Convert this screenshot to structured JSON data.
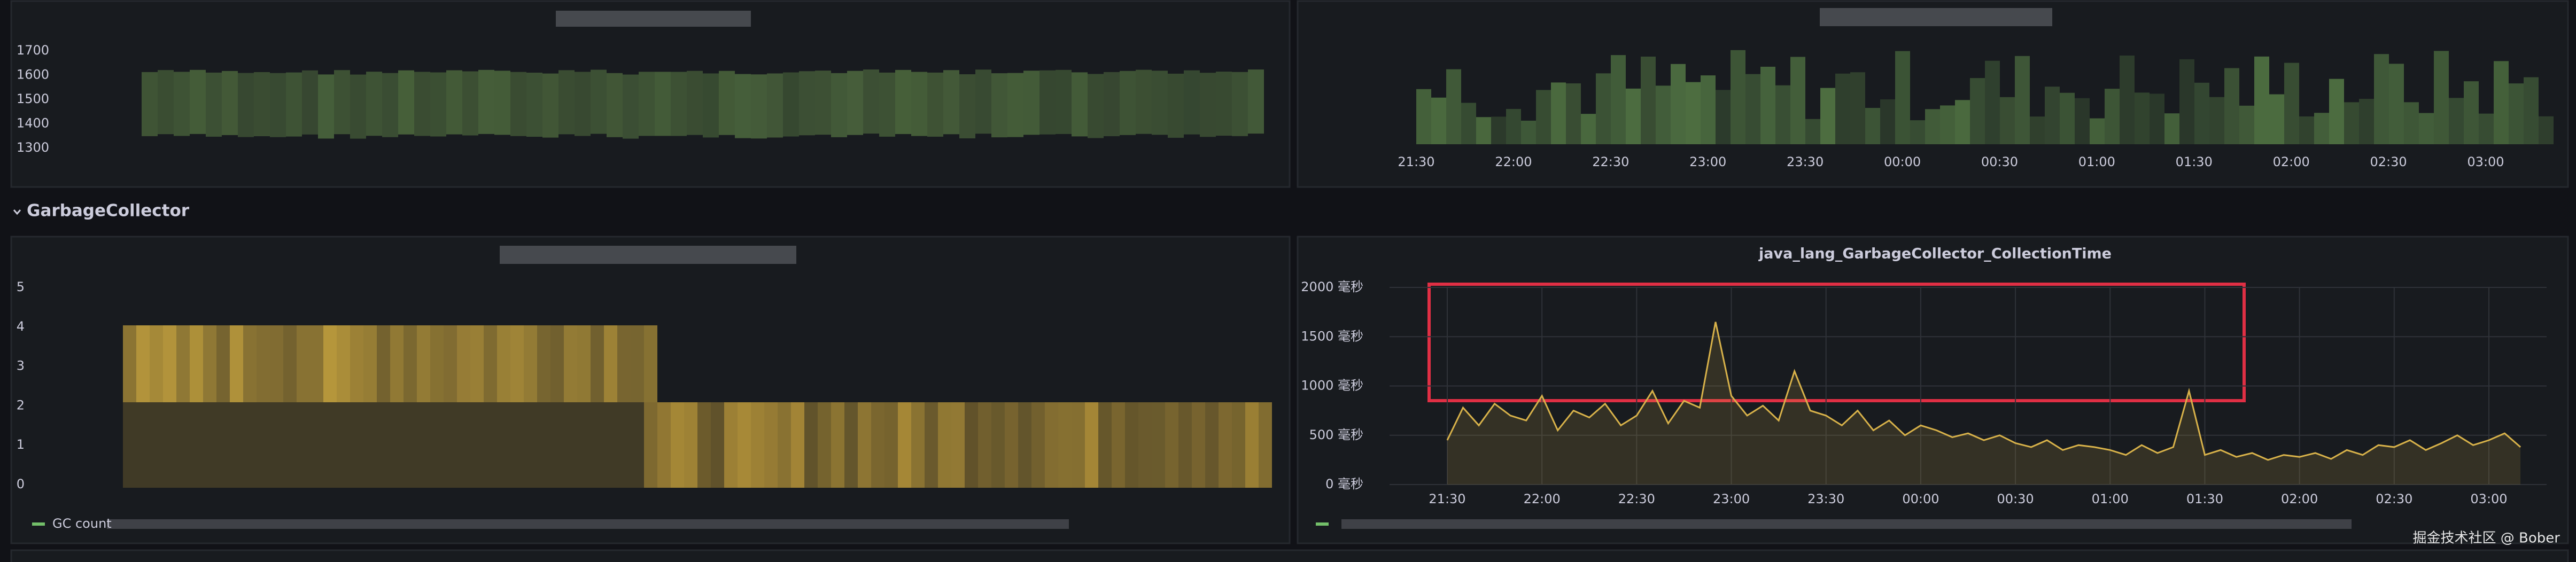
{
  "rows": [
    {
      "title": "GarbageCollector"
    }
  ],
  "watermark": "掘金技术社区 @ Bober",
  "chart_data": [
    {
      "type": "heatmap",
      "ylim": [
        1250,
        1750
      ],
      "yticks": [
        1300,
        1400,
        1500,
        1600,
        1700
      ]
    },
    {
      "type": "heatmap",
      "categories": [
        "21:30",
        "22:00",
        "22:30",
        "23:00",
        "23:30",
        "00:00",
        "00:30",
        "01:00",
        "01:30",
        "02:00",
        "02:30",
        "03:00"
      ]
    },
    {
      "type": "heatmap",
      "ylim": [
        0,
        5
      ],
      "yticks": [
        0,
        1,
        2,
        3,
        4,
        5
      ],
      "legend": [
        "GC count"
      ],
      "color": "#73bf69"
    },
    {
      "type": "line",
      "title": "java_lang_GarbageCollector_CollectionTime",
      "color": "#d8b24a",
      "grid": true,
      "legend_color": "#73bf69",
      "ylim": [
        0,
        2000
      ],
      "yticks": [
        {
          "value": 0,
          "label": "0 毫秒"
        },
        {
          "value": 500,
          "label": "500 毫秒"
        },
        {
          "value": 1000,
          "label": "1000 毫秒"
        },
        {
          "value": 1500,
          "label": "1500 毫秒"
        },
        {
          "value": 2000,
          "label": "2000 毫秒"
        }
      ],
      "categories": [
        "21:30",
        null,
        null,
        null,
        null,
        null,
        "22:00",
        null,
        null,
        null,
        null,
        null,
        "22:30",
        null,
        null,
        null,
        null,
        null,
        "23:00",
        null,
        null,
        null,
        null,
        null,
        "23:30",
        null,
        null,
        null,
        null,
        null,
        "00:00",
        null,
        null,
        null,
        null,
        null,
        "00:30",
        null,
        null,
        null,
        null,
        null,
        "01:00",
        null,
        null,
        null,
        null,
        null,
        "01:30",
        null,
        null,
        null,
        null,
        null,
        "02:00",
        null,
        null,
        null,
        null,
        null,
        "02:30",
        null,
        null,
        null,
        null,
        null,
        "03:00",
        null,
        null
      ],
      "values": [
        450,
        780,
        600,
        820,
        700,
        650,
        900,
        550,
        750,
        680,
        820,
        600,
        700,
        950,
        620,
        850,
        780,
        1650,
        900,
        700,
        800,
        650,
        1150,
        750,
        700,
        600,
        750,
        550,
        650,
        500,
        600,
        550,
        480,
        520,
        450,
        500,
        420,
        380,
        450,
        350,
        400,
        380,
        350,
        300,
        400,
        320,
        380,
        950,
        300,
        350,
        280,
        320,
        250,
        300,
        280,
        320,
        260,
        350,
        300,
        400,
        380,
        450,
        350,
        420,
        500,
        400,
        450,
        520,
        380
      ]
    }
  ]
}
